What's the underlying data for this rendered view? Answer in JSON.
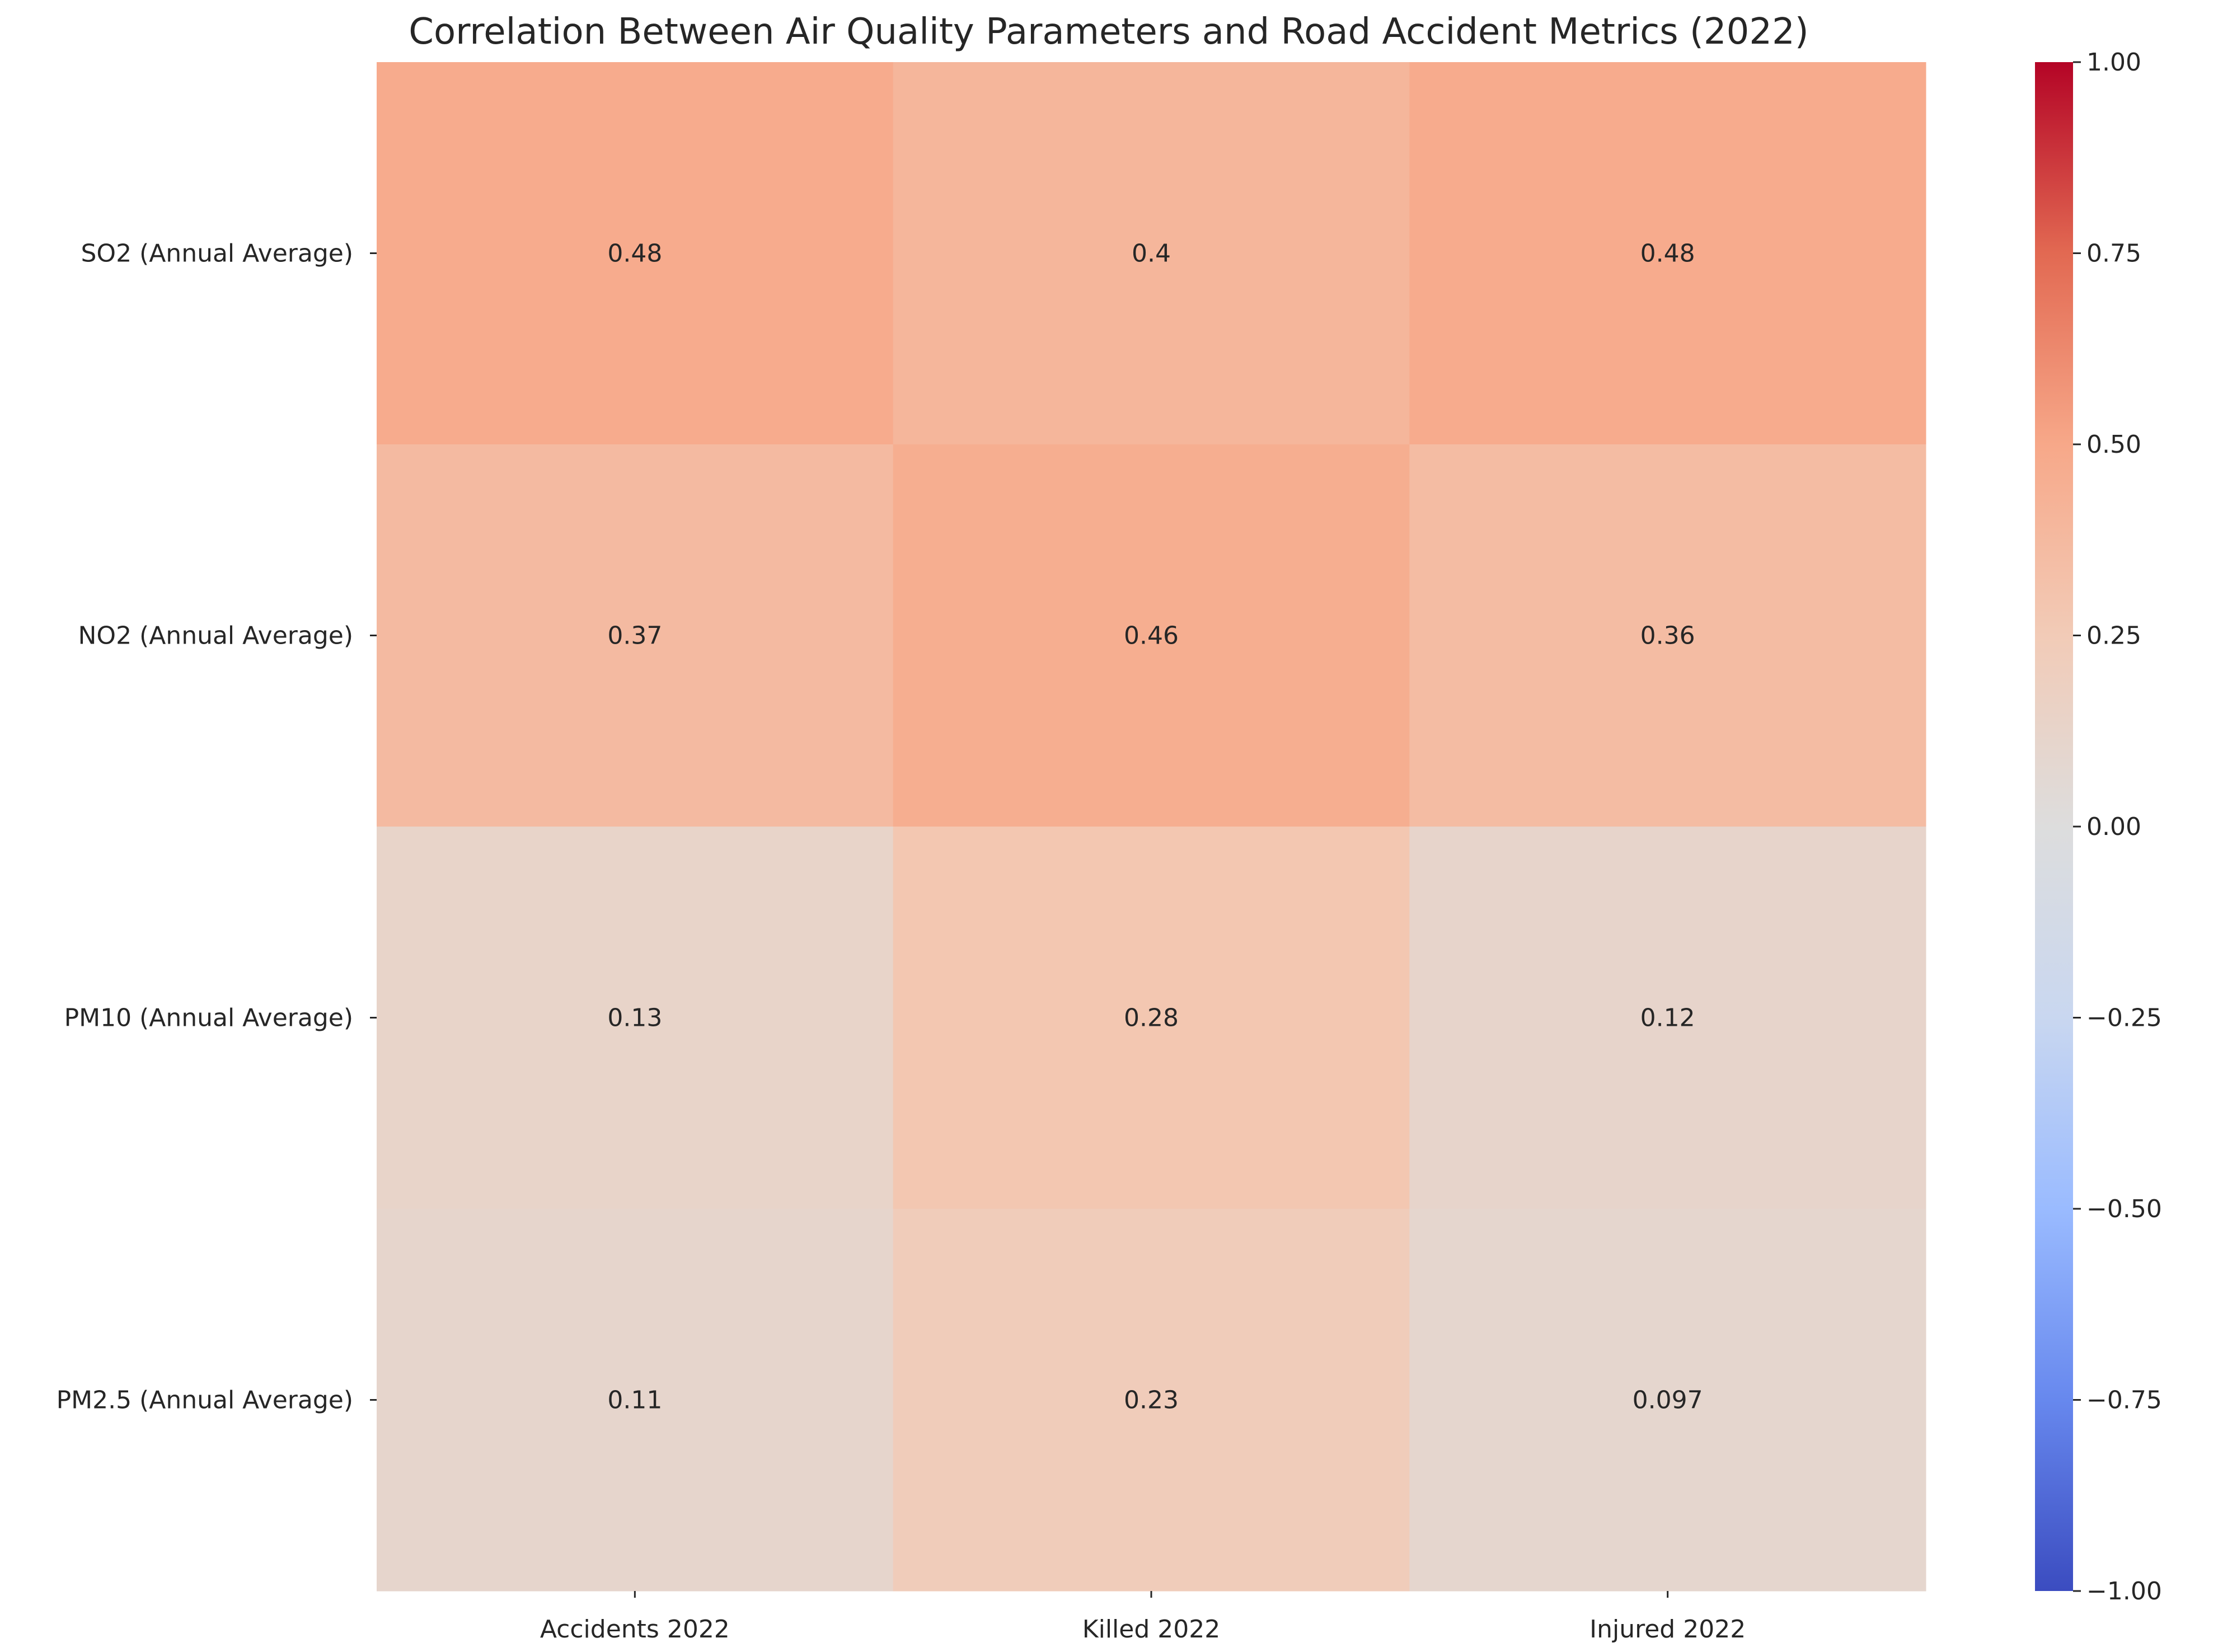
{
  "chart_data": {
    "type": "heatmap",
    "title": "Correlation Between Air Quality Parameters and Road Accident Metrics (2022)",
    "xlabel": "",
    "ylabel": "",
    "columns": [
      "Accidents 2022",
      "Killed 2022",
      "Injured 2022"
    ],
    "rows": [
      "SO2 (Annual Average)",
      "NO2 (Annual Average)",
      "PM10 (Annual Average)",
      "PM2.5 (Annual Average)"
    ],
    "values": [
      [
        0.48,
        0.4,
        0.48
      ],
      [
        0.37,
        0.46,
        0.36
      ],
      [
        0.13,
        0.28,
        0.12
      ],
      [
        0.11,
        0.23,
        0.097
      ]
    ],
    "value_labels": [
      [
        "0.48",
        "0.4",
        "0.48"
      ],
      [
        "0.37",
        "0.46",
        "0.36"
      ],
      [
        "0.13",
        "0.28",
        "0.12"
      ],
      [
        "0.11",
        "0.23",
        "0.097"
      ]
    ],
    "colormap": "coolwarm",
    "vmin": -1,
    "vmax": 1,
    "colorbar_ticks": [
      "1.00",
      "0.75",
      "0.50",
      "0.25",
      "0.00",
      "−0.25",
      "−0.50",
      "−0.75",
      "−1.00"
    ],
    "colorbar_tick_values": [
      1,
      0.75,
      0.5,
      0.25,
      0,
      -0.25,
      -0.5,
      -0.75,
      -1
    ],
    "colorbar_stops": [
      "#3b4cc0",
      "#6788ee",
      "#9abbff",
      "#c9d7f0",
      "#dddddd",
      "#f2cbb7",
      "#f7a889",
      "#e26952",
      "#b40426"
    ]
  }
}
